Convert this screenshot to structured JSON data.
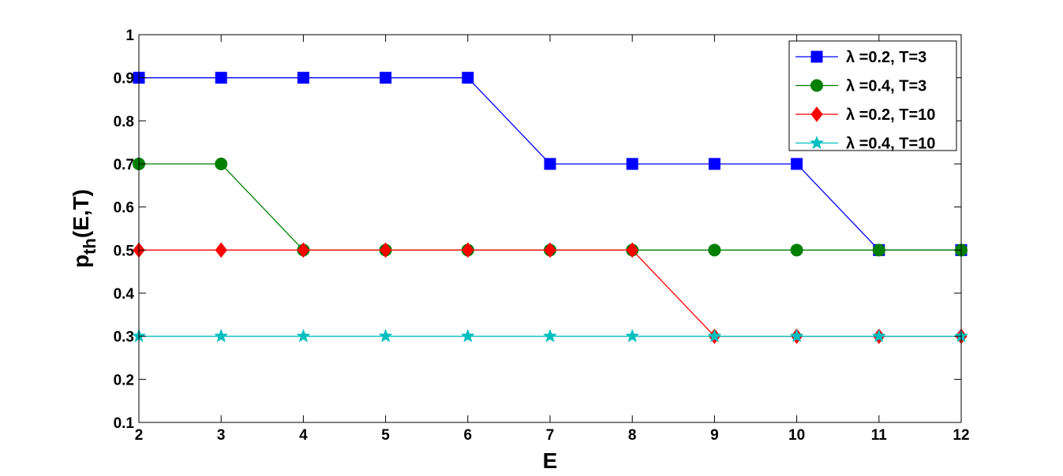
{
  "chart_data": {
    "type": "line",
    "xlabel": "E",
    "ylabel": {
      "base": "p",
      "sub": "th",
      "rest": "(E,T)"
    },
    "xlim": [
      2,
      12
    ],
    "ylim": [
      0.1,
      1
    ],
    "x_ticks": [
      2,
      3,
      4,
      5,
      6,
      7,
      8,
      9,
      10,
      11,
      12
    ],
    "y_ticks": [
      0.1,
      0.2,
      0.3,
      0.4,
      0.5,
      0.6,
      0.7,
      0.8,
      0.9,
      1
    ],
    "y_tick_labels": [
      "0.1",
      "0.2",
      "0.3",
      "0.4",
      "0.5",
      "0.6",
      "0.7",
      "0.8",
      "0.9",
      "1"
    ],
    "grid": false,
    "legend_position": "top-right",
    "x": [
      2,
      3,
      4,
      5,
      6,
      7,
      8,
      9,
      10,
      11,
      12
    ],
    "series": [
      {
        "name": "λ =0.2, T=3",
        "color": "#0000ff",
        "marker": "square",
        "values": [
          0.9,
          0.9,
          0.9,
          0.9,
          0.9,
          0.7,
          0.7,
          0.7,
          0.7,
          0.5,
          0.5
        ]
      },
      {
        "name": "λ =0.4, T=3",
        "color": "#007f00",
        "marker": "circle",
        "values": [
          0.7,
          0.7,
          0.5,
          0.5,
          0.5,
          0.5,
          0.5,
          0.5,
          0.5,
          0.5,
          0.5
        ]
      },
      {
        "name": "λ =0.2, T=10",
        "color": "#ff0000",
        "marker": "diamond",
        "values": [
          0.5,
          0.5,
          0.5,
          0.5,
          0.5,
          0.5,
          0.5,
          0.3,
          0.3,
          0.3,
          0.3
        ]
      },
      {
        "name": "λ =0.4, T=10",
        "color": "#00bfbf",
        "marker": "star",
        "values": [
          0.3,
          0.3,
          0.3,
          0.3,
          0.3,
          0.3,
          0.3,
          0.3,
          0.3,
          0.3,
          0.3
        ]
      }
    ]
  }
}
